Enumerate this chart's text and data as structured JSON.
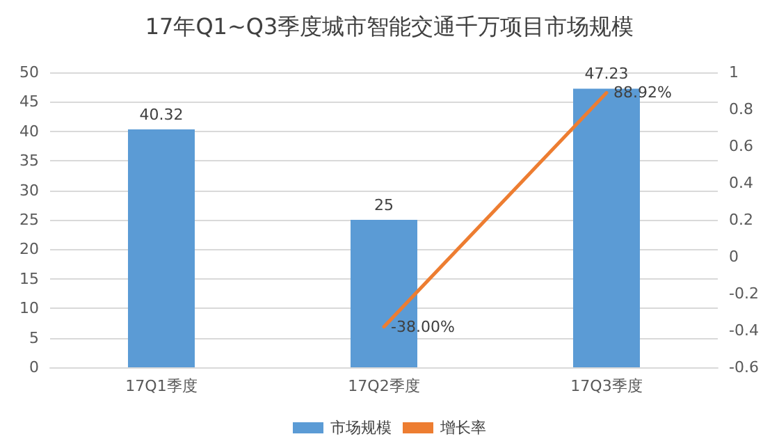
{
  "chart_data": {
    "type": "bar",
    "title": "17年Q1~Q3季度城市智能交通千万项目市场规模",
    "categories": [
      "17Q1季度",
      "17Q2季度",
      "17Q3季度"
    ],
    "series": [
      {
        "name": "市场规模",
        "color": "#5b9bd5",
        "values": [
          40.32,
          25,
          47.23
        ],
        "value_labels": [
          "40.32",
          "25",
          "47.23"
        ]
      },
      {
        "name": "增长率",
        "type": "line",
        "axis": "y2",
        "color": "#ed7d31",
        "values": [
          null,
          -0.38,
          0.8892
        ],
        "value_labels": [
          null,
          "-38.00%",
          "88.92%"
        ]
      }
    ],
    "ylim": [
      0,
      50
    ],
    "yticks": [
      0,
      5,
      10,
      15,
      20,
      25,
      30,
      35,
      40,
      45,
      50
    ],
    "y2lim": [
      -0.6,
      1
    ],
    "y2ticks": [
      -0.6,
      -0.4,
      -0.2,
      0,
      0.2,
      0.4,
      0.6,
      0.8,
      1
    ],
    "grid": "y",
    "legend": "bottom",
    "marker": "none",
    "line_style": "solid"
  }
}
